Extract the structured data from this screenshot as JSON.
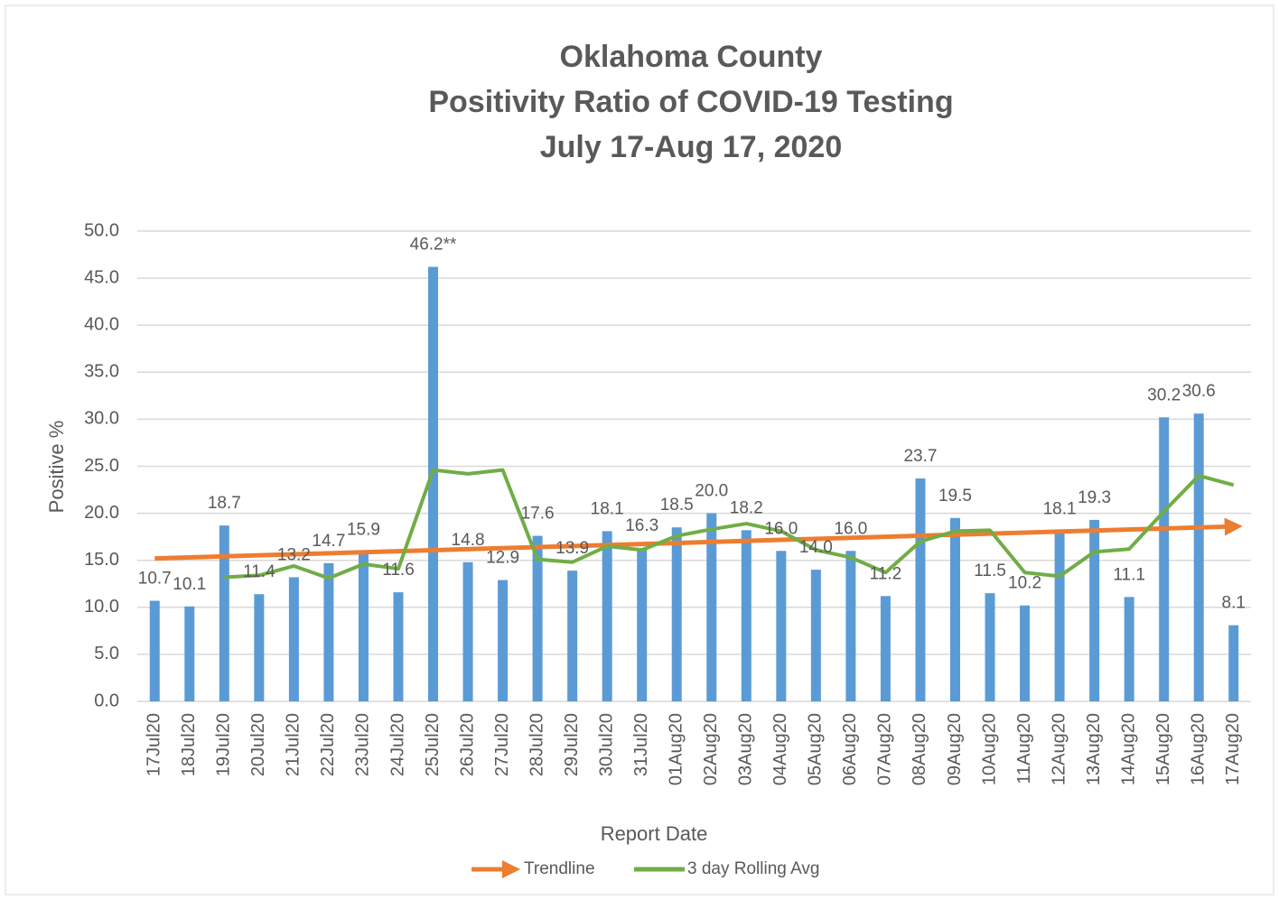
{
  "chart_data": {
    "type": "bar",
    "title": [
      "Oklahoma County",
      "Positivity Ratio of COVID-19 Testing",
      "July 17-Aug 17, 2020"
    ],
    "x_label": "Report Date",
    "y_label": "Positive %",
    "categories": [
      "17Jul20",
      "18Jul20",
      "19Jul20",
      "20Jul20",
      "21Jul20",
      "22Jul20",
      "23Jul20",
      "24Jul20",
      "25Jul20",
      "26Jul20",
      "27Jul20",
      "28Jul20",
      "29Jul20",
      "30Jul20",
      "31Jul20",
      "01Aug20",
      "02Aug20",
      "03Aug20",
      "04Aug20",
      "05Aug20",
      "06Aug20",
      "07Aug20",
      "08Aug20",
      "09Aug20",
      "10Aug20",
      "11Aug20",
      "12Aug20",
      "13Aug20",
      "14Aug20",
      "15Aug20",
      "16Aug20",
      "17Aug20"
    ],
    "values": [
      10.7,
      10.1,
      18.7,
      11.4,
      13.2,
      14.7,
      15.9,
      11.6,
      46.2,
      14.8,
      12.9,
      17.6,
      13.9,
      18.1,
      16.3,
      18.5,
      20.0,
      18.2,
      16.0,
      14.0,
      16.0,
      11.2,
      23.7,
      19.5,
      11.5,
      10.2,
      18.1,
      19.3,
      11.1,
      30.2,
      30.6,
      8.1
    ],
    "value_labels": [
      "10.7",
      "10.1",
      "18.7",
      "11.4",
      "13.2",
      "14.7",
      "15.9",
      "11.6",
      "46.2**",
      "14.8",
      "12.9",
      "17.6",
      "13.9",
      "18.1",
      "16.3",
      "18.5",
      "20.0",
      "18.2",
      "16.0",
      "14.0",
      "16.0",
      "11.2",
      "23.7",
      "19.5",
      "11.5",
      "10.2",
      "18.1",
      "19.3",
      "11.1",
      "30.2",
      "30.6",
      "8.1"
    ],
    "color": "#5b9bd5",
    "series": [
      {
        "name": "3 day Rolling Avg",
        "color": "#70ad47",
        "values": [
          null,
          null,
          13.2,
          13.4,
          14.4,
          13.1,
          14.6,
          14.1,
          24.6,
          24.2,
          24.6,
          15.1,
          14.8,
          16.5,
          16.1,
          17.6,
          18.3,
          18.9,
          18.1,
          16.1,
          15.3,
          13.7,
          17.0,
          18.1,
          18.2,
          13.7,
          13.3,
          15.9,
          16.2,
          20.2,
          24.0,
          23.0
        ]
      }
    ],
    "trendline": {
      "name": "Trendline",
      "color": "#ed7d31",
      "values": [
        15.2,
        18.6
      ]
    },
    "ylim": [
      0,
      50
    ],
    "yticks": [
      {
        "value": 0,
        "label": "0.0"
      },
      {
        "value": 5,
        "label": "5.0"
      },
      {
        "value": 10,
        "label": "10.0"
      },
      {
        "value": 15,
        "label": "15.0"
      },
      {
        "value": 20,
        "label": "20.0"
      },
      {
        "value": 25,
        "label": "25.0"
      },
      {
        "value": 30,
        "label": "30.0"
      },
      {
        "value": 35,
        "label": "35.0"
      },
      {
        "value": 40,
        "label": "40.0"
      },
      {
        "value": 45,
        "label": "45.0"
      },
      {
        "value": 50,
        "label": "50.0"
      }
    ],
    "grid": true
  }
}
